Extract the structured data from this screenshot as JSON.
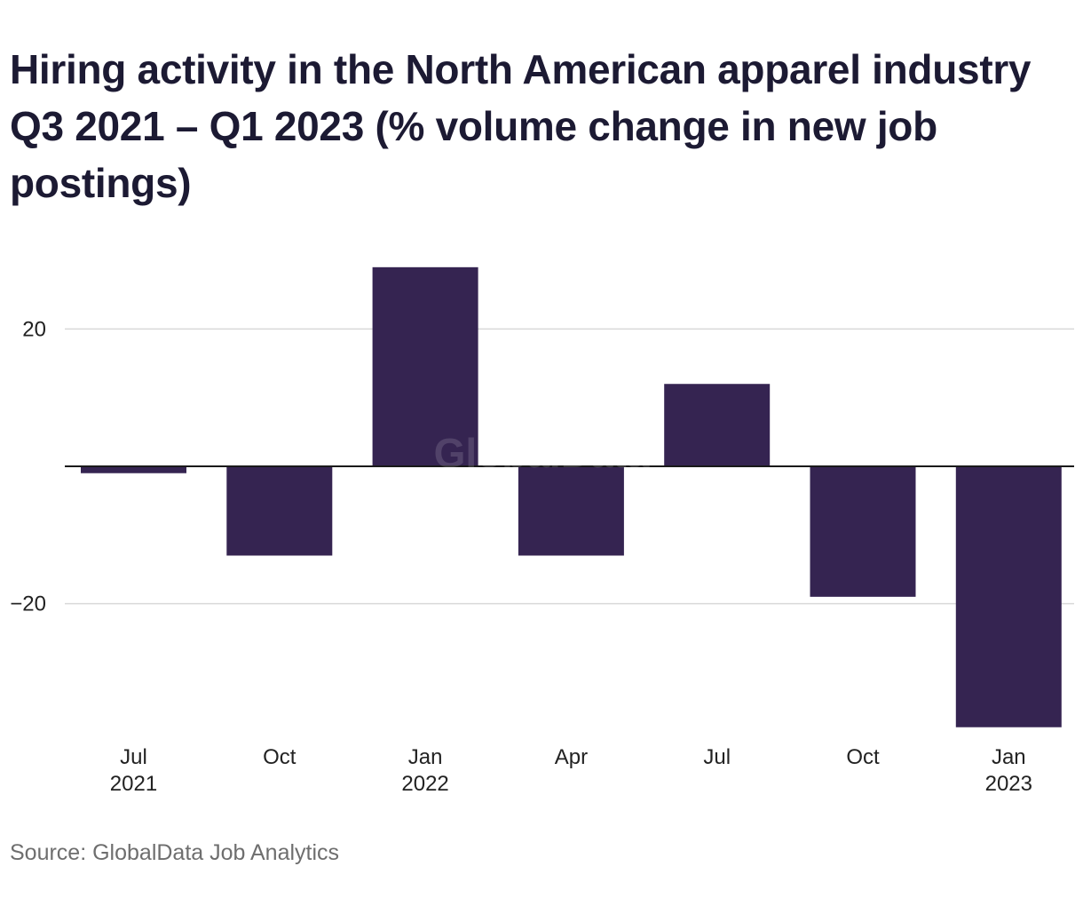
{
  "chart_data": {
    "type": "bar",
    "title": "Hiring activity in the North American apparel industry Q3 2021 – Q1 2023 (% volume change in new job postings)",
    "xlabel": "",
    "ylabel": "",
    "categories": [
      [
        "Jul",
        "2021"
      ],
      [
        "Oct",
        ""
      ],
      [
        "Jan",
        "2022"
      ],
      [
        "Apr",
        ""
      ],
      [
        "Jul",
        ""
      ],
      [
        "Oct",
        ""
      ],
      [
        "Jan",
        "2023"
      ]
    ],
    "values": [
      -1,
      -13,
      29,
      -13,
      12,
      -19,
      -38
    ],
    "y_ticks": [
      20,
      -20
    ],
    "y_tick_labels": [
      "20",
      "−20"
    ],
    "ylim": [
      -38,
      29
    ],
    "grid": true,
    "bar_color": "#352451",
    "watermark": "GlobalData",
    "source": "Source: GlobalData Job Analytics"
  }
}
